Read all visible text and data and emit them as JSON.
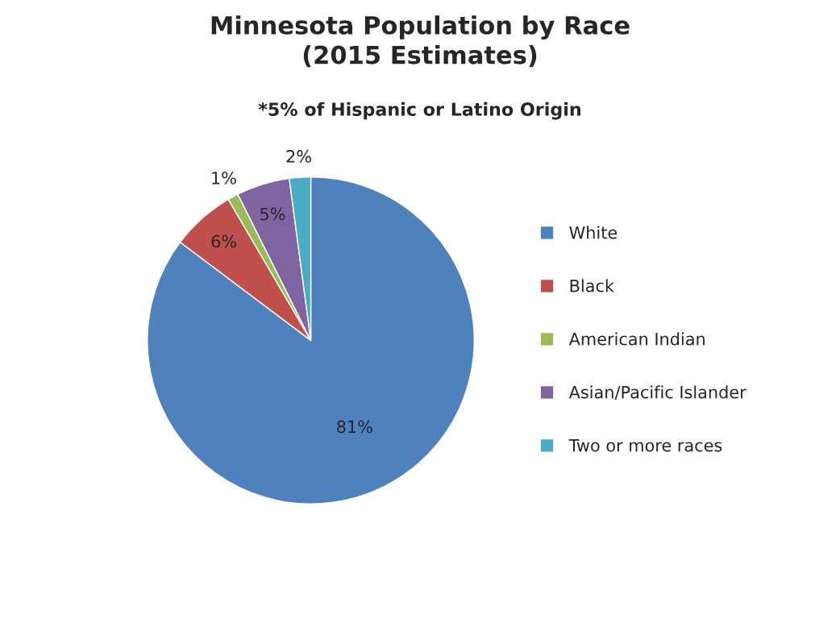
{
  "chart_data": {
    "type": "pie",
    "title": "Minnesota Population by Race\n(2015 Estimates)",
    "subtitle": "*5% of Hispanic or Latino Origin",
    "categories": [
      "White",
      "Black",
      "American Indian",
      "Asian/Pacific Islander",
      "Two or more races"
    ],
    "values": [
      81,
      6,
      1,
      5,
      2
    ],
    "colors": [
      "#4f81bd",
      "#c0504d",
      "#9bbb59",
      "#8064a2",
      "#4bacc6"
    ],
    "value_labels": [
      "81%",
      "6%",
      "1%",
      "5%",
      "2%"
    ],
    "legend": "right"
  }
}
